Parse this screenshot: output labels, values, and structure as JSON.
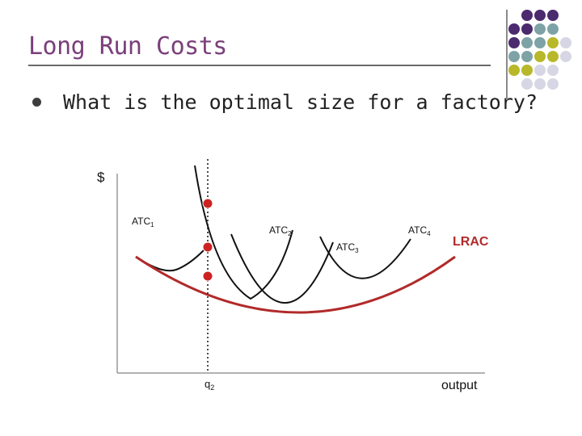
{
  "slide": {
    "title": "Long Run Costs",
    "bullet": "What is the optimal size for a factory?"
  },
  "decoration": {
    "dot_colors": [
      "#4b2a6e",
      "#7ea3a6",
      "#b8b82a",
      "#d6d6e4"
    ]
  },
  "colors": {
    "lrac": "#b22a2a",
    "atc": "#111111",
    "marker": "#cc2222"
  },
  "chart_data": {
    "type": "line",
    "ylabel": "$",
    "xlabel": "output",
    "x_marker_label": "q2",
    "x_marker_label_base": "q",
    "x_marker_label_sub": "2",
    "series": [
      {
        "name": "ATC1",
        "label_base": "ATC",
        "label_sub": "1"
      },
      {
        "name": "ATC2",
        "label_base": "ATC",
        "label_sub": "2"
      },
      {
        "name": "ATC3",
        "label_base": "ATC",
        "label_sub": "3"
      },
      {
        "name": "ATC4",
        "label_base": "ATC",
        "label_sub": "4"
      },
      {
        "name": "LRAC"
      }
    ],
    "markers": 3,
    "grid": false
  }
}
